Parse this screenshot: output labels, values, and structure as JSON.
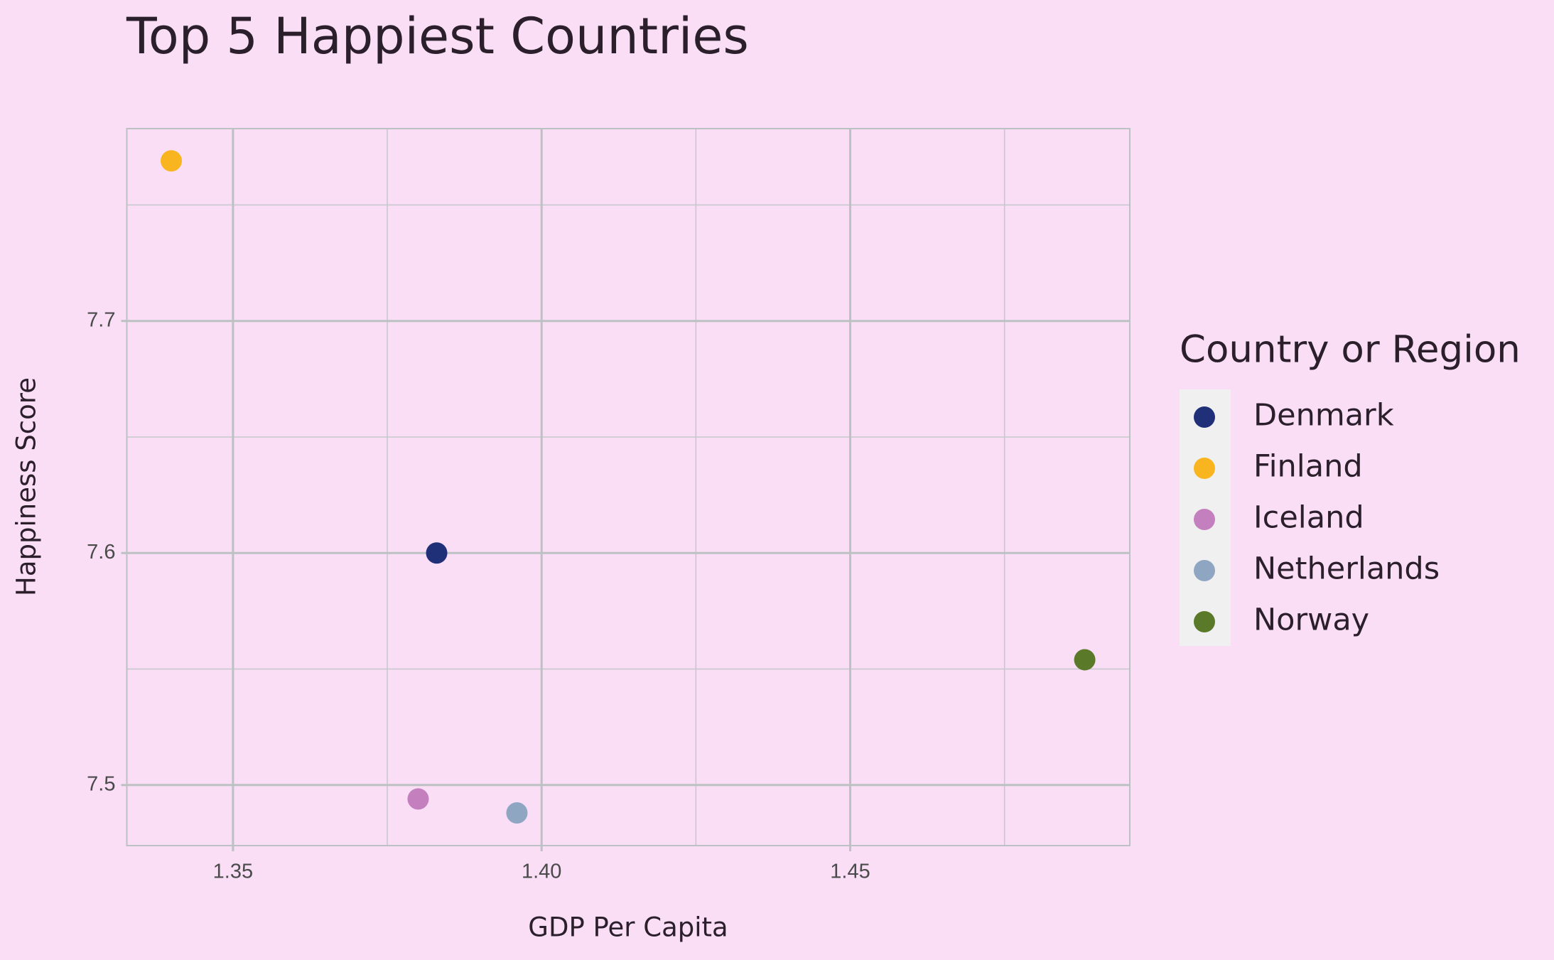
{
  "chart_data": {
    "type": "scatter",
    "title": "Top 5 Happiest Countries",
    "x_label": "GDP Per Capita",
    "y_label": "Happiness Score",
    "legend_title": "Country or Region",
    "legend_position": "right",
    "grid": true,
    "xlim": [
      1.3328,
      1.4953
    ],
    "ylim": [
      7.4739,
      7.7829
    ],
    "xticks": [
      1.35,
      {
        "value": 1.4,
        "label": "1.40"
      },
      1.45
    ],
    "yticks": [
      7.5,
      7.6,
      7.7
    ],
    "series": [
      {
        "name": "Denmark",
        "color": "#1f2f78",
        "x": [
          1.383
        ],
        "values": [
          7.6
        ]
      },
      {
        "name": "Finland",
        "color": "#f9b51f",
        "x": [
          1.34
        ],
        "values": [
          7.769
        ]
      },
      {
        "name": "Iceland",
        "color": "#c47fbf",
        "x": [
          1.38
        ],
        "values": [
          7.494
        ]
      },
      {
        "name": "Netherlands",
        "color": "#8fa6c3",
        "x": [
          1.396
        ],
        "values": [
          7.488
        ]
      },
      {
        "name": "Norway",
        "color": "#5a7a2a",
        "x": [
          1.488
        ],
        "values": [
          7.554
        ]
      }
    ]
  }
}
